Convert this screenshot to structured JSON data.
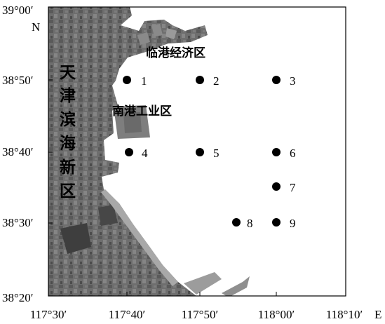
{
  "map": {
    "y_ticks": [
      "39°00′",
      "38°50′",
      "38°40′",
      "38°30′",
      "38°20′"
    ],
    "x_ticks": [
      "117°30′",
      "117°40′",
      "117°50′",
      "118°00′",
      "118°10′"
    ],
    "north_label": "N",
    "east_label": "E",
    "regions": {
      "lingang": "临港经济区",
      "nangang": "南港工业区",
      "binhai_chars": [
        "天",
        "津",
        "滨",
        "海",
        "新",
        "区"
      ]
    },
    "stations": [
      {
        "id": "1",
        "lon": "117°40′",
        "lat": "38°50′"
      },
      {
        "id": "2",
        "lon": "117°50′",
        "lat": "38°50′"
      },
      {
        "id": "3",
        "lon": "118°00′",
        "lat": "38°50′"
      },
      {
        "id": "4",
        "lon": "117°40′",
        "lat": "38°40′"
      },
      {
        "id": "5",
        "lon": "117°50′",
        "lat": "38°40′"
      },
      {
        "id": "6",
        "lon": "118°00′",
        "lat": "38°40′"
      },
      {
        "id": "7",
        "lon": "118°00′",
        "lat": "38°35′"
      },
      {
        "id": "8",
        "lon": "117°55′",
        "lat": "38°30′"
      },
      {
        "id": "9",
        "lon": "118°00′",
        "lat": "38°30′"
      }
    ],
    "colors": {
      "land": "#6f6f6f",
      "sea": "#ffffff",
      "station": "#000000"
    }
  }
}
